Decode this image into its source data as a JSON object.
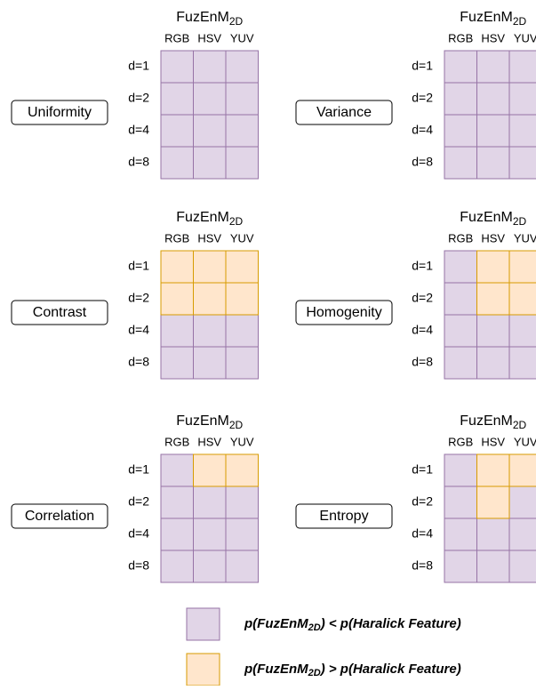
{
  "panels": [
    {
      "label": "Uniformity",
      "title": "FuzEnM",
      "title_sub": "2D",
      "columns": [
        "RGB",
        "HSV",
        "YUV"
      ],
      "rows": [
        "d=1",
        "d=2",
        "d=4",
        "d=8"
      ],
      "cells": [
        [
          0,
          0,
          0
        ],
        [
          0,
          0,
          0
        ],
        [
          0,
          0,
          0
        ],
        [
          0,
          0,
          0
        ]
      ]
    },
    {
      "label": "Variance",
      "title": "FuzEnM",
      "title_sub": "2D",
      "columns": [
        "RGB",
        "HSV",
        "YUV"
      ],
      "rows": [
        "d=1",
        "d=2",
        "d=4",
        "d=8"
      ],
      "cells": [
        [
          0,
          0,
          0
        ],
        [
          0,
          0,
          0
        ],
        [
          0,
          0,
          0
        ],
        [
          0,
          0,
          0
        ]
      ]
    },
    {
      "label": "Contrast",
      "title": "FuzEnM",
      "title_sub": "2D",
      "columns": [
        "RGB",
        "HSV",
        "YUV"
      ],
      "rows": [
        "d=1",
        "d=2",
        "d=4",
        "d=8"
      ],
      "cells": [
        [
          1,
          1,
          1
        ],
        [
          1,
          1,
          1
        ],
        [
          0,
          0,
          0
        ],
        [
          0,
          0,
          0
        ]
      ]
    },
    {
      "label": "Homogenity",
      "title": "FuzEnM",
      "title_sub": "2D",
      "columns": [
        "RGB",
        "HSV",
        "YUV"
      ],
      "rows": [
        "d=1",
        "d=2",
        "d=4",
        "d=8"
      ],
      "cells": [
        [
          0,
          1,
          1
        ],
        [
          0,
          1,
          1
        ],
        [
          0,
          0,
          0
        ],
        [
          0,
          0,
          0
        ]
      ]
    },
    {
      "label": "Correlation",
      "title": "FuzEnM",
      "title_sub": "2D",
      "columns": [
        "RGB",
        "HSV",
        "YUV"
      ],
      "rows": [
        "d=1",
        "d=2",
        "d=4",
        "d=8"
      ],
      "cells": [
        [
          0,
          1,
          1
        ],
        [
          0,
          0,
          0
        ],
        [
          0,
          0,
          0
        ],
        [
          0,
          0,
          0
        ]
      ]
    },
    {
      "label": "Entropy",
      "title": "FuzEnM",
      "title_sub": "2D",
      "columns": [
        "RGB",
        "HSV",
        "YUV"
      ],
      "rows": [
        "d=1",
        "d=2",
        "d=4",
        "d=8"
      ],
      "cells": [
        [
          0,
          1,
          1
        ],
        [
          0,
          1,
          0
        ],
        [
          0,
          0,
          0
        ],
        [
          0,
          0,
          0
        ]
      ]
    }
  ],
  "legend": [
    {
      "color": "#e1d5e7",
      "border": "#9673a6",
      "text_parts": [
        "p(FuzEnM",
        "2D",
        ") < p(Haralick Feature)"
      ]
    },
    {
      "color": "#ffe6cc",
      "border": "#d79b00",
      "text_parts": [
        "p(FuzEnM",
        "2D",
        ") > p(Haralick Feature)"
      ]
    }
  ]
}
